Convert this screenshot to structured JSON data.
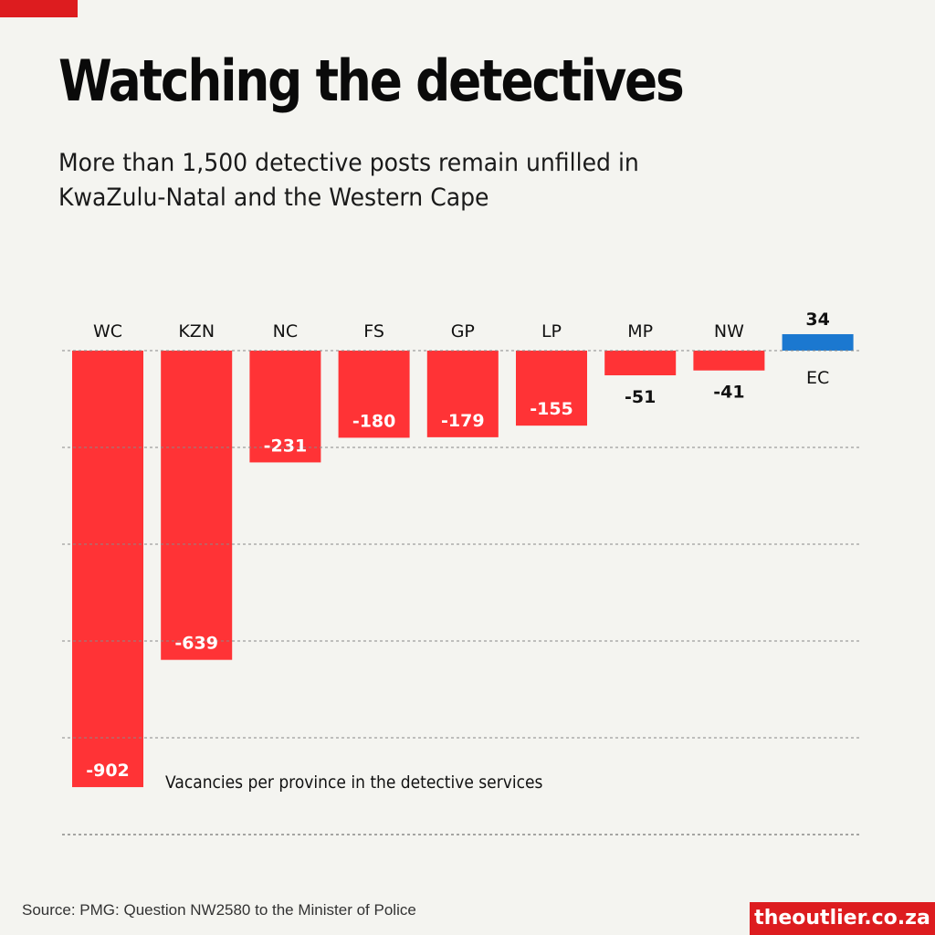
{
  "header": {
    "title": "Watching the detectives",
    "subtitle": "More than 1,500 detective posts remain unfilled in KwaZulu-Natal and the Western Cape"
  },
  "footer": {
    "source": "Source: PMG: Question NW2580 to the Minister of Police",
    "brand": "theoutlier.co.za"
  },
  "colors": {
    "negative": "#ff3336",
    "positive": "#1b78d0",
    "brand": "#dd1c1f"
  },
  "chart_data": {
    "type": "bar",
    "title": "Watching the detectives",
    "annotation": "Vacancies per province in the detective services",
    "categories": [
      "WC",
      "KZN",
      "NC",
      "FS",
      "GP",
      "LP",
      "MP",
      "NW",
      "EC"
    ],
    "values": [
      -902,
      -639,
      -231,
      -180,
      -179,
      -155,
      -51,
      -41,
      34
    ],
    "labels": [
      "-902",
      "-639",
      "-231",
      "-180",
      "-179",
      "-155",
      "-51",
      "-41",
      "34"
    ],
    "gridlines": [
      0,
      -200,
      -400,
      -600,
      -800,
      -1000
    ],
    "ylim": [
      -1000,
      34
    ],
    "grid": true
  }
}
